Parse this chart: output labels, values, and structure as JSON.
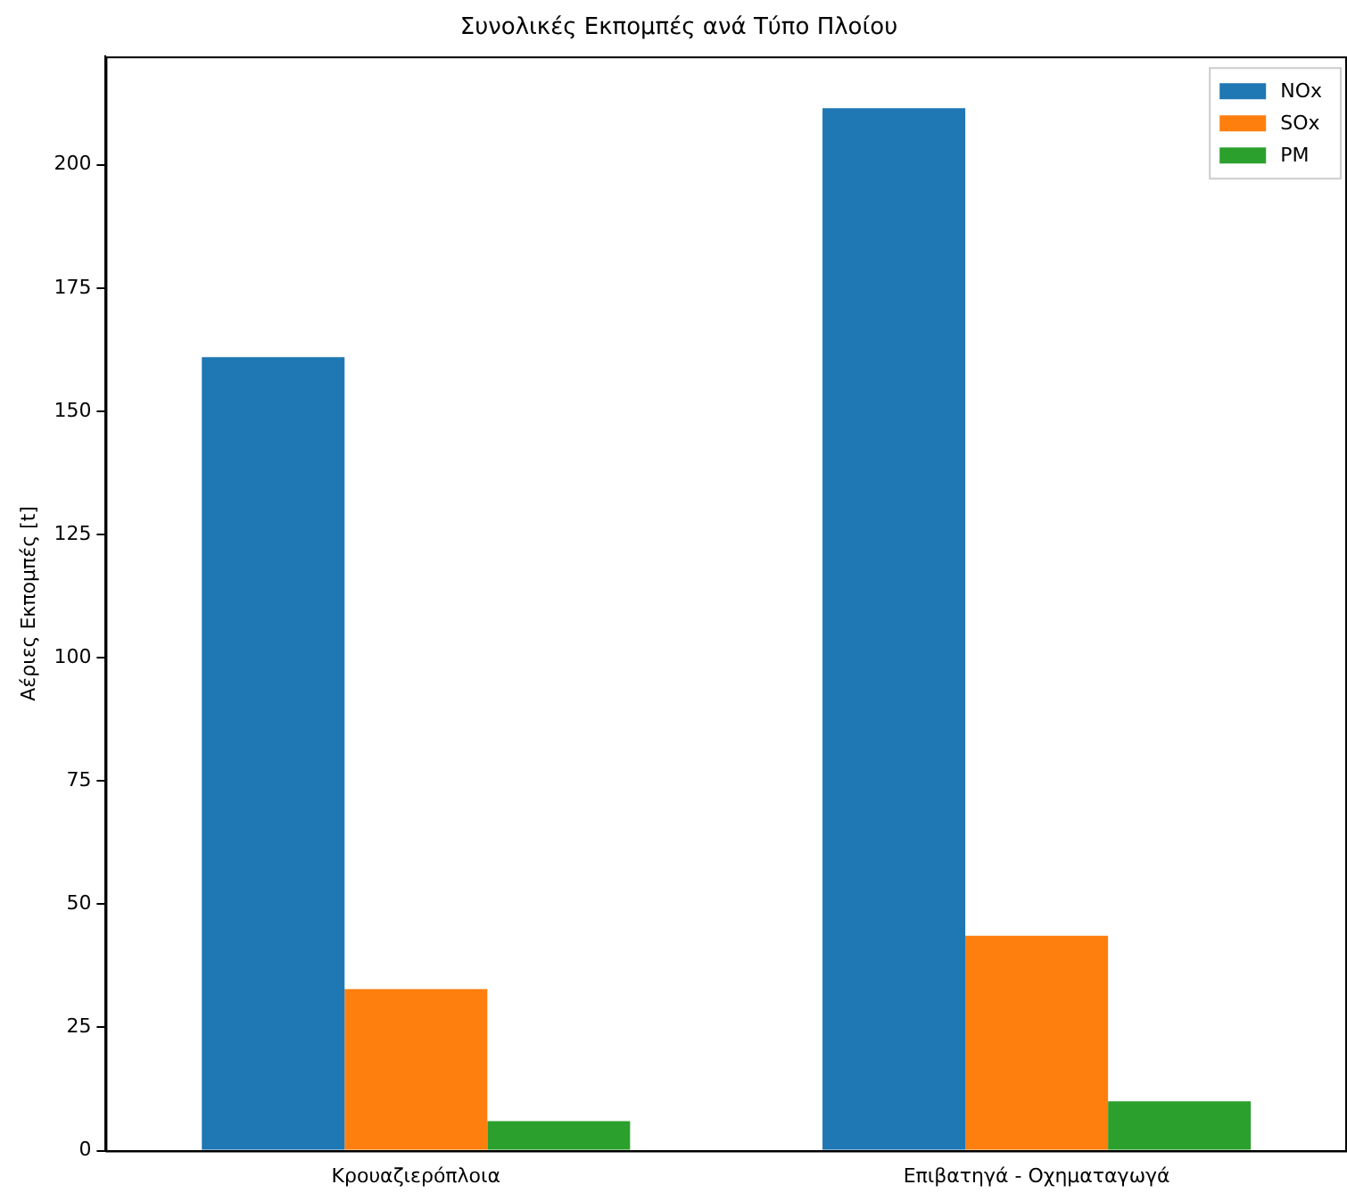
{
  "chart_data": {
    "type": "bar",
    "title": "Συνολικές Εκπομπές ανά Τύπο Πλοίου",
    "ylabel": "Αέριες Εκπομπές [t]",
    "categories": [
      "Κρουαζιερόπλοια",
      "Επιβατηγά - Οχηματαγωγά"
    ],
    "series": [
      {
        "name": "NOx",
        "color": "#1f77b4",
        "values": [
          161,
          211.5
        ]
      },
      {
        "name": "SOx",
        "color": "#ff7f0e",
        "values": [
          32.8,
          43.6
        ]
      },
      {
        "name": "PM",
        "color": "#2ca02c",
        "values": [
          6,
          10
        ]
      }
    ],
    "ylim": [
      0,
      222
    ],
    "yticks": [
      0,
      25,
      50,
      75,
      100,
      125,
      150,
      175,
      200
    ],
    "grid": false,
    "legend": "top right"
  }
}
